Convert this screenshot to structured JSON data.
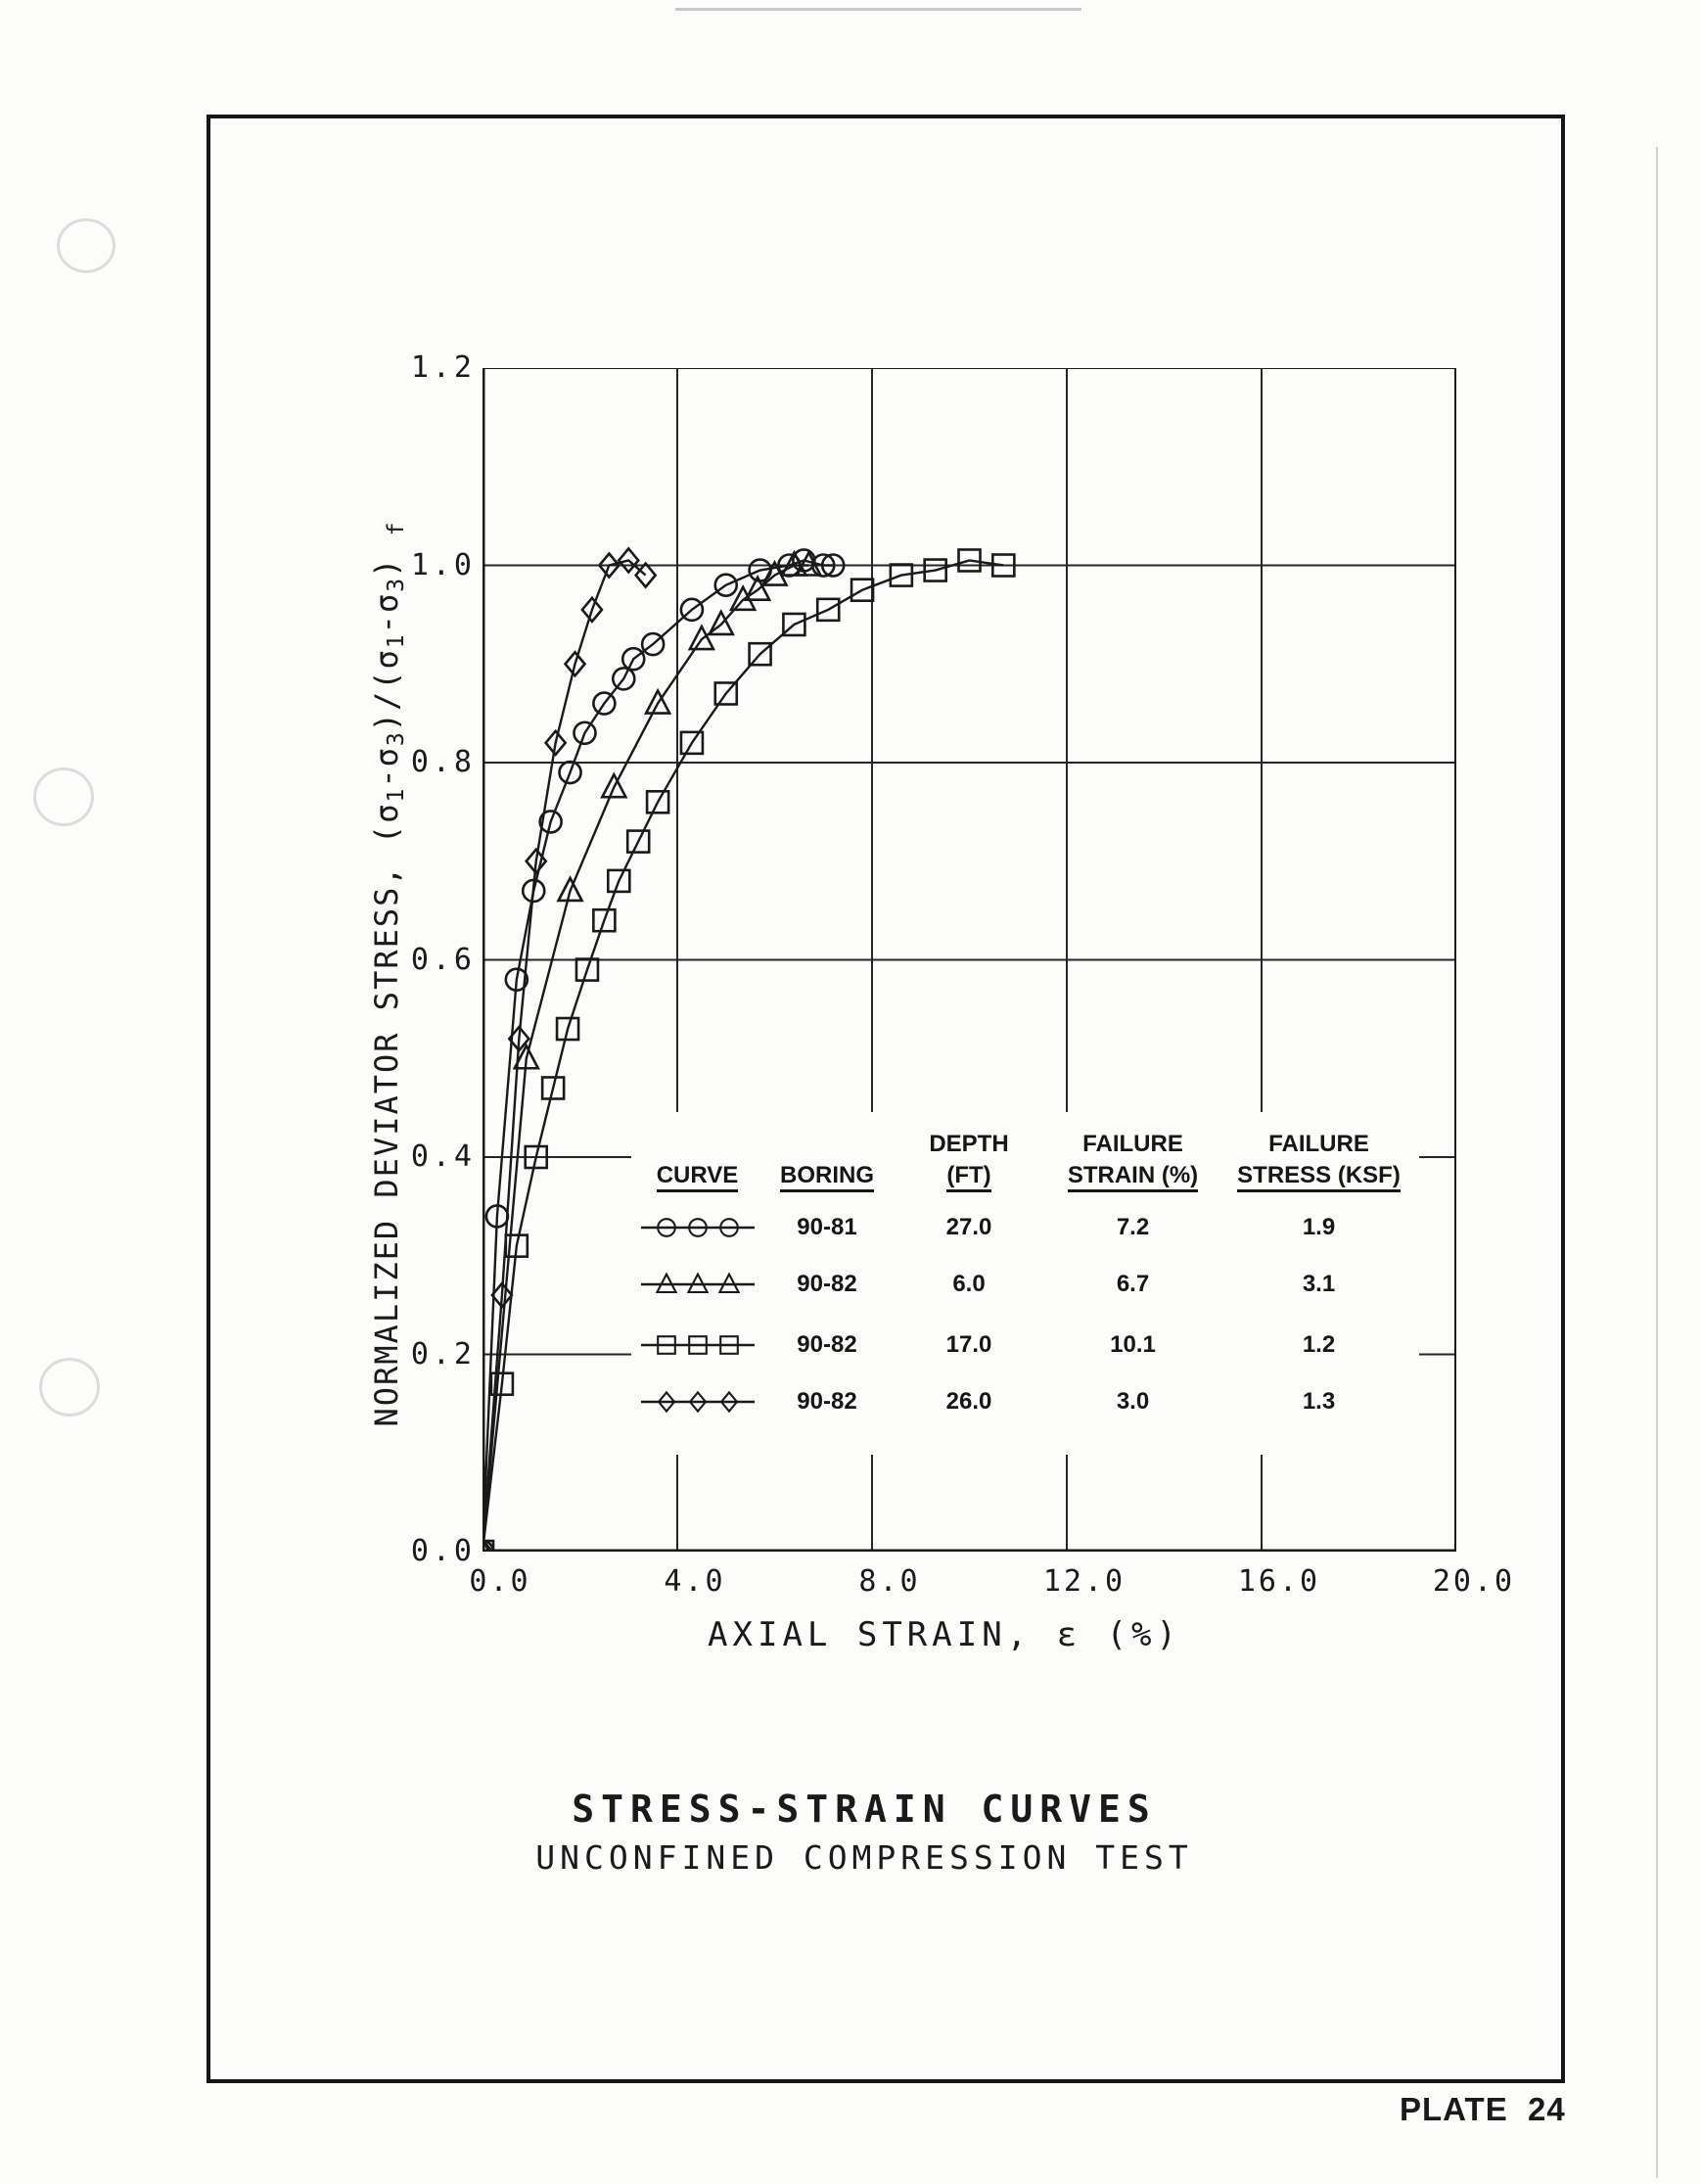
{
  "page": {
    "plate_label": "PLATE  24"
  },
  "colors": {
    "ink": "#1a1a1a",
    "grid": "#262626",
    "paper": "#fcfcfb"
  },
  "chart_data": {
    "type": "line",
    "title": "STRESS-STRAIN CURVES",
    "subtitle": "UNCONFINED COMPRESSION TEST",
    "xlabel": "AXIAL STRAIN, ε (%)",
    "ylabel": "NORMALIZED DEVIATOR STRESS, (σ₁-σ₃)/(σ₁-σ₃)f",
    "ylabel_parts": [
      {
        "t": "NORMALIZED DEVIATOR STRESS, (σ",
        "s": 0
      },
      {
        "t": "1",
        "s": 1
      },
      {
        "t": "-σ",
        "s": 0
      },
      {
        "t": "3",
        "s": 1
      },
      {
        "t": ")/(σ",
        "s": 0
      },
      {
        "t": "1",
        "s": 1
      },
      {
        "t": "-σ",
        "s": 0
      },
      {
        "t": "3",
        "s": 1
      },
      {
        "t": ") ",
        "s": 0
      },
      {
        "t": "f",
        "s": 1
      }
    ],
    "xlim": [
      0,
      20
    ],
    "ylim": [
      0,
      1.2
    ],
    "x_ticks": [
      "0.0",
      "4.0",
      "8.0",
      "12.0",
      "16.0",
      "20.0"
    ],
    "x_tick_values": [
      0,
      4,
      8,
      12,
      16,
      20
    ],
    "y_ticks": [
      "0.0",
      "0.2",
      "0.4",
      "0.6",
      "0.8",
      "1.0",
      "1.2"
    ],
    "y_tick_values": [
      0,
      0.2,
      0.4,
      0.6,
      0.8,
      1.0,
      1.2
    ],
    "grid": true,
    "legend_position": "inside lower right",
    "series": [
      {
        "name": "Boring 90-81, depth 27.0 ft",
        "marker": "circle",
        "failure_strain_pct": 7.2,
        "failure_stress_ksf": 1.9,
        "points": [
          [
            0,
            0
          ],
          [
            0.3,
            0.34
          ],
          [
            0.7,
            0.58
          ],
          [
            1.05,
            0.67
          ],
          [
            1.4,
            0.74
          ],
          [
            1.8,
            0.79
          ],
          [
            2.1,
            0.83
          ],
          [
            2.5,
            0.86
          ],
          [
            2.9,
            0.885
          ],
          [
            3.1,
            0.905
          ],
          [
            3.5,
            0.92
          ],
          [
            4.3,
            0.955
          ],
          [
            5.0,
            0.98
          ],
          [
            5.7,
            0.995
          ],
          [
            6.3,
            1.0
          ],
          [
            6.6,
            1.005
          ],
          [
            7.0,
            1.0
          ],
          [
            7.2,
            1.0
          ]
        ]
      },
      {
        "name": "Boring 90-82, depth 6.0 ft",
        "marker": "triangle",
        "failure_strain_pct": 6.7,
        "failure_stress_ksf": 3.1,
        "points": [
          [
            0,
            0
          ],
          [
            0.9,
            0.5
          ],
          [
            1.8,
            0.67
          ],
          [
            2.7,
            0.775
          ],
          [
            3.6,
            0.86
          ],
          [
            4.5,
            0.925
          ],
          [
            4.9,
            0.94
          ],
          [
            5.35,
            0.965
          ],
          [
            5.65,
            0.975
          ],
          [
            6.0,
            0.99
          ],
          [
            6.4,
            1.0
          ],
          [
            6.7,
            1.0
          ]
        ]
      },
      {
        "name": "Boring 90-82, depth 17.0 ft",
        "marker": "square",
        "failure_strain_pct": 10.1,
        "failure_stress_ksf": 1.2,
        "points": [
          [
            0,
            0
          ],
          [
            0.4,
            0.17
          ],
          [
            0.7,
            0.31
          ],
          [
            1.1,
            0.4
          ],
          [
            1.45,
            0.47
          ],
          [
            1.75,
            0.53
          ],
          [
            2.15,
            0.59
          ],
          [
            2.5,
            0.64
          ],
          [
            2.8,
            0.68
          ],
          [
            3.2,
            0.72
          ],
          [
            3.6,
            0.76
          ],
          [
            4.3,
            0.82
          ],
          [
            5.0,
            0.87
          ],
          [
            5.7,
            0.91
          ],
          [
            6.4,
            0.94
          ],
          [
            7.1,
            0.955
          ],
          [
            7.8,
            0.975
          ],
          [
            8.6,
            0.99
          ],
          [
            9.3,
            0.995
          ],
          [
            10.0,
            1.005
          ],
          [
            10.7,
            1.0
          ]
        ]
      },
      {
        "name": "Boring 90-82, depth 26.0 ft",
        "marker": "diamond",
        "failure_strain_pct": 3.0,
        "failure_stress_ksf": 1.3,
        "points": [
          [
            0,
            0
          ],
          [
            0.4,
            0.26
          ],
          [
            0.75,
            0.52
          ],
          [
            1.1,
            0.7
          ],
          [
            1.5,
            0.82
          ],
          [
            1.9,
            0.9
          ],
          [
            2.25,
            0.955
          ],
          [
            2.6,
            1.0
          ],
          [
            3.0,
            1.005
          ],
          [
            3.35,
            0.99
          ]
        ]
      }
    ]
  },
  "legend": {
    "headers": [
      {
        "line1": "",
        "line2": "CURVE"
      },
      {
        "line1": "",
        "line2": "BORING"
      },
      {
        "line1": "DEPTH",
        "line2": "(FT)"
      },
      {
        "line1": "FAILURE",
        "line2": "STRAIN (%)"
      },
      {
        "line1": "FAILURE",
        "line2": "STRESS (KSF)"
      }
    ],
    "rows": [
      {
        "marker": "circle",
        "boring": "90-81",
        "depth": "27.0",
        "strain": "7.2",
        "stress": "1.9"
      },
      {
        "marker": "triangle",
        "boring": "90-82",
        "depth": "6.0",
        "strain": "6.7",
        "stress": "3.1"
      },
      {
        "marker": "square",
        "boring": "90-82",
        "depth": "17.0",
        "strain": "10.1",
        "stress": "1.2"
      },
      {
        "marker": "diamond",
        "boring": "90-82",
        "depth": "26.0",
        "strain": "3.0",
        "stress": "1.3"
      }
    ]
  }
}
